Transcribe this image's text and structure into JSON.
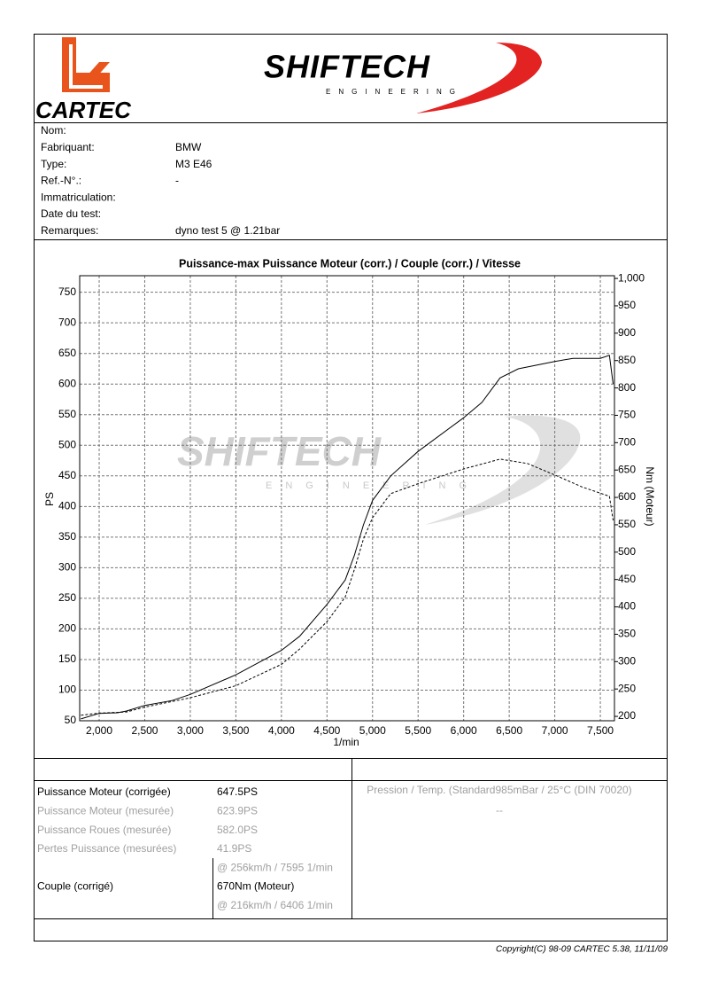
{
  "header": {
    "left_logo": "CARTEC",
    "right_logo": "SHIFTECH",
    "right_logo_sub": "ENGINEERING"
  },
  "info": [
    {
      "label": "Nom:"
    },
    {
      "label": "Fabriquant:",
      "value": "BMW"
    },
    {
      "label": "Type:",
      "value": "M3 E46"
    },
    {
      "label": "Ref.-N°.:",
      "value": "-"
    },
    {
      "label": "Immatriculation:"
    },
    {
      "label": "Date du test:"
    },
    {
      "label": "Remarques:",
      "value": "dyno test 5 @ 1.21bar"
    }
  ],
  "chart_data": {
    "type": "line",
    "title": "Puissance-max Puissance Moteur (corr.) / Couple (corr.) / Vitesse",
    "watermark": "SHIFTECH",
    "watermark_sub": "ENGINEERING",
    "x_label": "1/min",
    "y_label": "PS",
    "y2_label": "Nm (Moteur)",
    "xlim": [
      1786,
      7655
    ],
    "xticks": [
      {
        "value": 2000,
        "label": "2,000"
      },
      {
        "value": 2500,
        "label": "2,500"
      },
      {
        "value": 3000,
        "label": "3,000"
      },
      {
        "value": 3500,
        "label": "3,500"
      },
      {
        "value": 4000,
        "label": "4,000"
      },
      {
        "value": 4500,
        "label": "4,500"
      },
      {
        "value": 5000,
        "label": "5,000"
      },
      {
        "value": 5500,
        "label": "5,500"
      },
      {
        "value": 6000,
        "label": "6,000"
      },
      {
        "value": 6500,
        "label": "6,500"
      },
      {
        "value": 7000,
        "label": "7,000"
      },
      {
        "value": 7500,
        "label": "7,500"
      }
    ],
    "ylim": [
      50,
      777
    ],
    "yticks": [
      50,
      100,
      150,
      200,
      250,
      300,
      350,
      400,
      450,
      500,
      550,
      600,
      650,
      700,
      750
    ],
    "y2lim": [
      192,
      1005
    ],
    "y2ticks": [
      200,
      250,
      300,
      350,
      400,
      450,
      500,
      550,
      600,
      650,
      700,
      750,
      800,
      850,
      900,
      950,
      {
        "value": 1000,
        "label": "1,000"
      }
    ],
    "grid": true,
    "series": [
      {
        "color": "#000000",
        "dashed": false,
        "x": [
          1800,
          2000,
          2200,
          2300,
          2500,
          2800,
          3000,
          3500,
          4000,
          4200,
          4500,
          4700,
          4800,
          4900,
          5000,
          5200,
          5500,
          6000,
          6200,
          6400,
          6600,
          7000,
          7200,
          7500,
          7600,
          7640
        ],
        "values": [
          53,
          62,
          63,
          66,
          75,
          83,
          93,
          125,
          165,
          188,
          240,
          280,
          320,
          370,
          410,
          450,
          490,
          545,
          570,
          610,
          625,
          637,
          642,
          642,
          647,
          600
        ]
      },
      {
        "color": "#000000",
        "dashed": true,
        "axis": "y2",
        "x": [
          1800,
          2000,
          2300,
          2500,
          3000,
          3500,
          4000,
          4200,
          4500,
          4700,
          4800,
          4900,
          5000,
          5200,
          5500,
          6000,
          6400,
          6700,
          7000,
          7300,
          7600,
          7640
        ],
        "values": [
          202,
          206,
          208,
          217,
          234,
          256,
          295,
          323,
          373,
          418,
          468,
          524,
          563,
          607,
          625,
          652,
          670,
          662,
          641,
          619,
          602,
          558
        ]
      }
    ]
  },
  "results": [
    {
      "label": "Puissance Moteur (corrigée)",
      "value": "647.5PS"
    },
    {
      "label": "Puissance Moteur (mesurée)",
      "value": "623.9PS"
    },
    {
      "label": "Puissance Roues (mesurée)",
      "value": "582.0PS"
    },
    {
      "label": "Pertes Puissance (mesurées)",
      "value": "41.9PS"
    },
    {
      "value": "@ 256km/h / 7595 1/min"
    },
    {
      "label": "Couple (corrigé)",
      "value": "670Nm (Moteur)"
    },
    {
      "value": "@ 216km/h / 6406 1/min"
    }
  ],
  "conditions": {
    "label": "Pression / Temp. (Standard985mBar / 25°C    (DIN 70020)",
    "value": "--"
  },
  "footer": "Copyright(C) 98-09 CARTEC 5.38, 11/11/09"
}
